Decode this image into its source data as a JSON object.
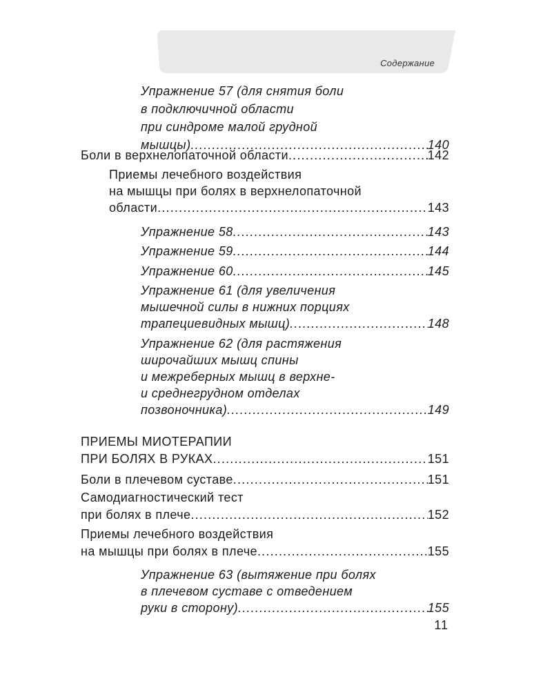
{
  "header": {
    "section_title": "Содержание",
    "tab_color": "#e9e9e9"
  },
  "entries": [
    {
      "level": 2,
      "lines": [
        "Упражнение 57 (для снятия боли",
        "в подключичной области",
        "при синдроме малой грудной",
        "мышцы)"
      ],
      "page": "140"
    },
    {
      "level": 0,
      "lines": [
        "Боли в верхнелопаточной области"
      ],
      "page": "142"
    },
    {
      "level": 1,
      "lines": [
        "Приемы лечебного воздействия",
        "на мышцы при болях в верхнелопаточной",
        "области "
      ],
      "page": "143"
    },
    {
      "level": 2,
      "lines": [
        "Упражнение 58 "
      ],
      "page": "143"
    },
    {
      "level": 2,
      "lines": [
        "Упражнение 59 "
      ],
      "page": "144"
    },
    {
      "level": 2,
      "lines": [
        "Упражнение 60 "
      ],
      "page": "145"
    },
    {
      "level": 2,
      "lines": [
        "Упражнение 61 (для увеличения",
        "мышечной силы в нижних порциях",
        "трапециевидных мышц) "
      ],
      "page": "148"
    },
    {
      "level": 2,
      "lines": [
        "Упражнение 62 (для растяжения",
        "широчайших мышц спины",
        "и межреберных мышц в верхне-",
        "и среднегрудном отделах",
        "позвоночника)"
      ],
      "page": "149"
    },
    {
      "level": 0,
      "lines": [
        "ПРИЕМЫ МИОТЕРАПИИ",
        "ПРИ БОЛЯХ В РУКАХ"
      ],
      "page": "151"
    },
    {
      "level": 0,
      "lines": [
        "Боли в плечевом суставе"
      ],
      "page": "151"
    },
    {
      "level": 0,
      "lines": [
        "Самодиагностический тест",
        "при болях в плече "
      ],
      "page": "152"
    },
    {
      "level": 0,
      "lines": [
        "Приемы лечебного воздействия",
        "на мышцы при болях в плече"
      ],
      "page": "155"
    },
    {
      "level": 2,
      "lines": [
        "Упражнение 63 (вытяжение при болях",
        "в плечевом суставе с отведением",
        "руки в сторону) "
      ],
      "page": "155"
    }
  ],
  "page_number": "11"
}
